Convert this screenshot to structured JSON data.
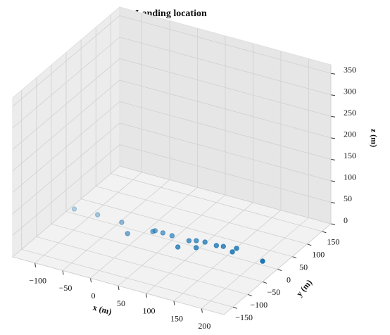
{
  "chart_data": {
    "type": "scatter3d",
    "title": "Landing location",
    "xlabel": "x (m)",
    "ylabel": "y (m)",
    "zlabel": "z (m)",
    "x": [
      -133,
      -92,
      -47,
      -21,
      10,
      12,
      26,
      43,
      69,
      74,
      84,
      95,
      98,
      119,
      130,
      151,
      151,
      207
    ],
    "y": [
      14,
      16,
      13,
      -16,
      11,
      15,
      15,
      14,
      -15,
      13,
      19,
      -2,
      22,
      21,
      24,
      15,
      29,
      12
    ],
    "z": [
      0,
      0,
      0,
      0,
      0,
      0,
      0,
      0,
      0,
      0,
      0,
      0,
      0,
      0,
      0,
      0,
      0,
      0
    ],
    "color": "#1f77b4",
    "xlim": [
      -140,
      240
    ],
    "ylim": [
      -180,
      180
    ],
    "zlim": [
      0,
      370
    ],
    "xticks": [
      {
        "value": -100,
        "label": "−100"
      },
      {
        "value": -50,
        "label": "−50"
      },
      0,
      50,
      100,
      150,
      200
    ],
    "yticks": [
      {
        "value": -150,
        "label": "−150"
      },
      {
        "value": -100,
        "label": "−100"
      },
      {
        "value": -50,
        "label": "−50"
      },
      0,
      50,
      100,
      150
    ],
    "zticks": [
      0,
      50,
      100,
      150,
      200,
      250,
      300,
      350
    ],
    "grid": true
  }
}
